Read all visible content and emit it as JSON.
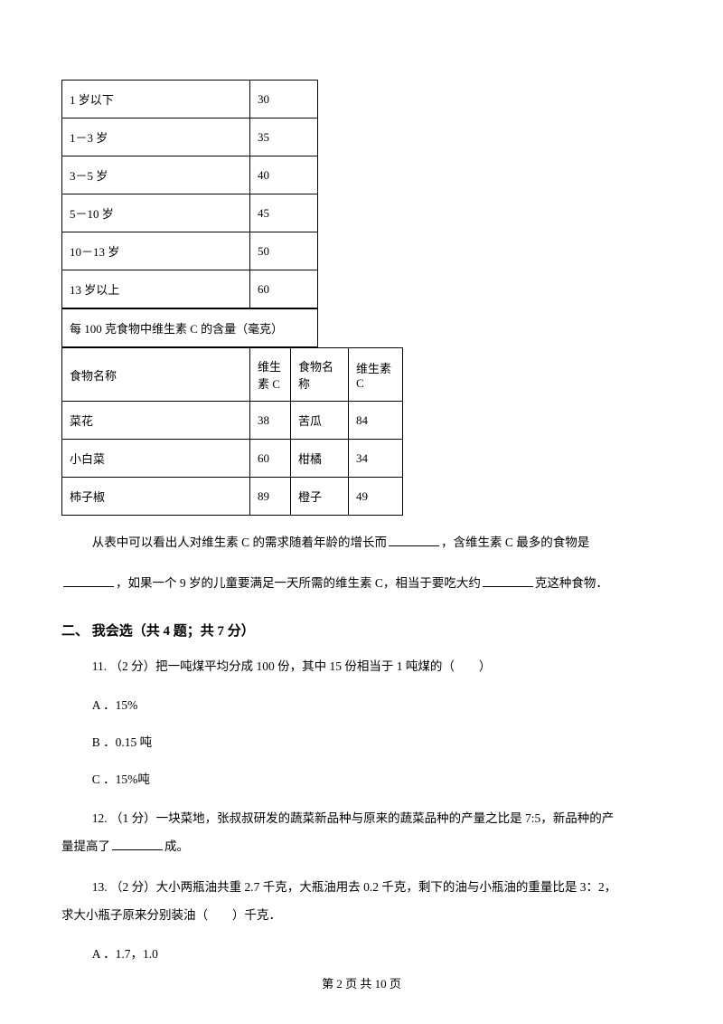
{
  "table1": {
    "rows": [
      {
        "age": "1 岁以下",
        "value": "30"
      },
      {
        "age": "1－3 岁",
        "value": "35"
      },
      {
        "age": "3－5 岁",
        "value": "40"
      },
      {
        "age": "5－10 岁",
        "value": "45"
      },
      {
        "age": "10－13 岁",
        "value": "50"
      },
      {
        "age": "13 岁以上",
        "value": "60"
      }
    ]
  },
  "table2": {
    "caption": "每 100 克食物中维生素 C 的含量（毫克）",
    "headers": {
      "h1": "食物名称",
      "h2": "维生素 C",
      "h3": "食物名称",
      "h4": "维生素 C"
    },
    "rows": [
      {
        "f1": "菜花",
        "v1": "38",
        "f2": "苦瓜",
        "v2": "84"
      },
      {
        "f1": "小白菜",
        "v1": "60",
        "f2": "柑橘",
        "v2": "34"
      },
      {
        "f1": "柿子椒",
        "v1": "89",
        "f2": "橙子",
        "v2": "49"
      }
    ]
  },
  "para1_a": "从表中可以看出人对维生素 C 的需求随着年龄的增长而",
  "para1_b": "，含维生素 C 最多的食物是",
  "para2_a": "，如果一个 9 岁的儿童要满足一天所需的维生素 C，相当于要吃大约",
  "para2_b": "克这种食物．",
  "section2": "二、 我会选（共 4 题；共 7 分）",
  "q11": "11. （2 分）把一吨煤平均分成 100 份，其中 15 份相当于 1 吨煤的（　　）",
  "q11_a": "A ．15%",
  "q11_b": "B ．0.15 吨",
  "q11_c": "C ．15%吨",
  "q12_a": "12.  （1 分）一块菜地，张叔叔研发的蔬菜新品种与原来的蔬菜品种的产量之比是 7:5，新品种的产",
  "q12_b": "量提高了",
  "q12_c": "成。",
  "q13_a": "13. （2 分）大小两瓶油共重 2.7 千克，大瓶油用去 0.2 千克，剩下的油与小瓶油的重量比是 3：2，",
  "q13_b": "求大小瓶子原来分别装油（　　）千克．",
  "q13_opt_a": "A ．1.7，1.0",
  "footer": "第 2 页 共 10 页"
}
